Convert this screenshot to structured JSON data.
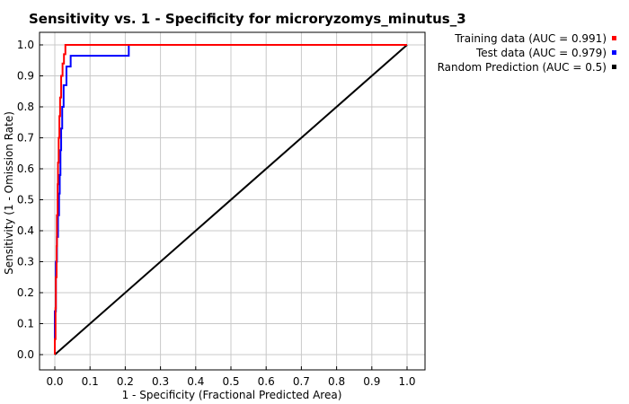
{
  "chart_data": {
    "type": "line",
    "title": "Sensitivity vs. 1 - Specificity for microryzomys_minutus_3",
    "xlabel": "1 - Specificity  (Fractional Predicted Area)",
    "ylabel": "Sensitivity  (1 - Omission Rate)",
    "xlim": [
      0.0,
      1.0
    ],
    "ylim": [
      0.0,
      1.0
    ],
    "x_ticks": [
      "0.0",
      "0.1",
      "0.2",
      "0.3",
      "0.4",
      "0.5",
      "0.6",
      "0.7",
      "0.8",
      "0.9",
      "1.0"
    ],
    "y_ticks": [
      "0.0",
      "0.1",
      "0.2",
      "0.3",
      "0.4",
      "0.5",
      "0.6",
      "0.7",
      "0.8",
      "0.9",
      "1.0"
    ],
    "grid": true,
    "legend_position": "top-right",
    "series": [
      {
        "name": "Training data (AUC = 0.991)",
        "color": "#ff0000",
        "points": [
          [
            0.0,
            0.0
          ],
          [
            0.0,
            0.05
          ],
          [
            0.002,
            0.05
          ],
          [
            0.002,
            0.15
          ],
          [
            0.003,
            0.15
          ],
          [
            0.003,
            0.25
          ],
          [
            0.005,
            0.25
          ],
          [
            0.005,
            0.35
          ],
          [
            0.006,
            0.35
          ],
          [
            0.006,
            0.45
          ],
          [
            0.008,
            0.45
          ],
          [
            0.008,
            0.55
          ],
          [
            0.009,
            0.55
          ],
          [
            0.009,
            0.62
          ],
          [
            0.011,
            0.62
          ],
          [
            0.011,
            0.7
          ],
          [
            0.013,
            0.7
          ],
          [
            0.013,
            0.77
          ],
          [
            0.015,
            0.77
          ],
          [
            0.015,
            0.83
          ],
          [
            0.018,
            0.83
          ],
          [
            0.018,
            0.9
          ],
          [
            0.022,
            0.9
          ],
          [
            0.022,
            0.94
          ],
          [
            0.026,
            0.94
          ],
          [
            0.026,
            0.97
          ],
          [
            0.03,
            0.97
          ],
          [
            0.03,
            1.0
          ],
          [
            1.0,
            1.0
          ]
        ]
      },
      {
        "name": "Test data (AUC = 0.979)",
        "color": "#0000ff",
        "points": [
          [
            0.0,
            0.0
          ],
          [
            0.0,
            0.14
          ],
          [
            0.003,
            0.14
          ],
          [
            0.003,
            0.3
          ],
          [
            0.006,
            0.3
          ],
          [
            0.006,
            0.38
          ],
          [
            0.009,
            0.38
          ],
          [
            0.009,
            0.45
          ],
          [
            0.012,
            0.45
          ],
          [
            0.012,
            0.52
          ],
          [
            0.014,
            0.52
          ],
          [
            0.014,
            0.58
          ],
          [
            0.016,
            0.58
          ],
          [
            0.016,
            0.66
          ],
          [
            0.018,
            0.66
          ],
          [
            0.018,
            0.73
          ],
          [
            0.021,
            0.73
          ],
          [
            0.021,
            0.8
          ],
          [
            0.025,
            0.8
          ],
          [
            0.025,
            0.87
          ],
          [
            0.033,
            0.87
          ],
          [
            0.033,
            0.93
          ],
          [
            0.045,
            0.93
          ],
          [
            0.045,
            0.965
          ],
          [
            0.21,
            0.965
          ],
          [
            0.21,
            1.0
          ],
          [
            1.0,
            1.0
          ]
        ]
      },
      {
        "name": "Random Prediction (AUC = 0.5)",
        "color": "#000000",
        "points": [
          [
            0.0,
            0.0
          ],
          [
            1.0,
            1.0
          ]
        ]
      }
    ]
  }
}
